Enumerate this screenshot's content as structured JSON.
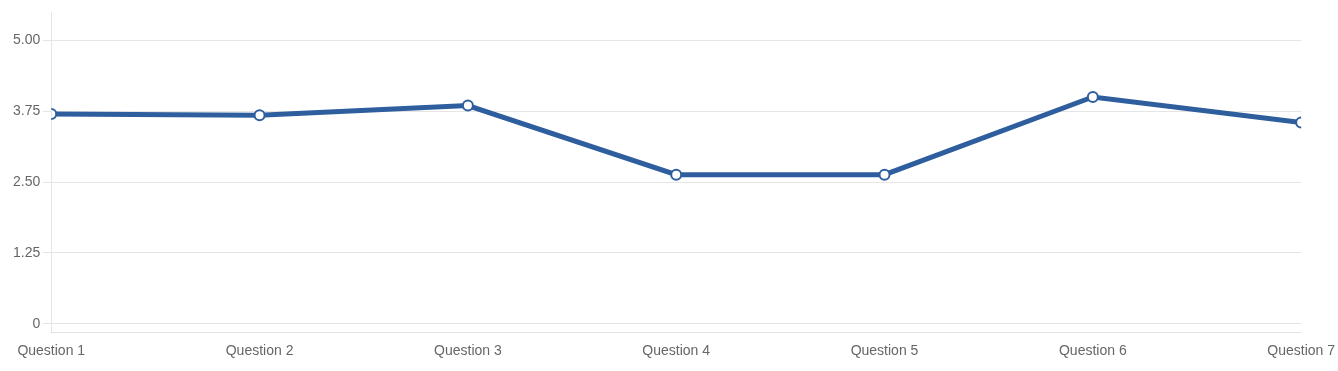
{
  "chart_data": {
    "type": "line",
    "categories": [
      "Question 1",
      "Question 2",
      "Question 3",
      "Question 4",
      "Question 5",
      "Question 6",
      "Question 7"
    ],
    "values": [
      3.7,
      3.68,
      3.85,
      2.63,
      2.63,
      4.0,
      3.55
    ],
    "color": "#2E5E9E",
    "marker": "circle",
    "ylim": [
      -0.15,
      5.5
    ],
    "yticks": [
      0,
      1.25,
      {
        "value": 2.5,
        "label": "2.50"
      },
      3.75,
      {
        "value": 5,
        "label": "5.00"
      }
    ],
    "grid": true
  }
}
